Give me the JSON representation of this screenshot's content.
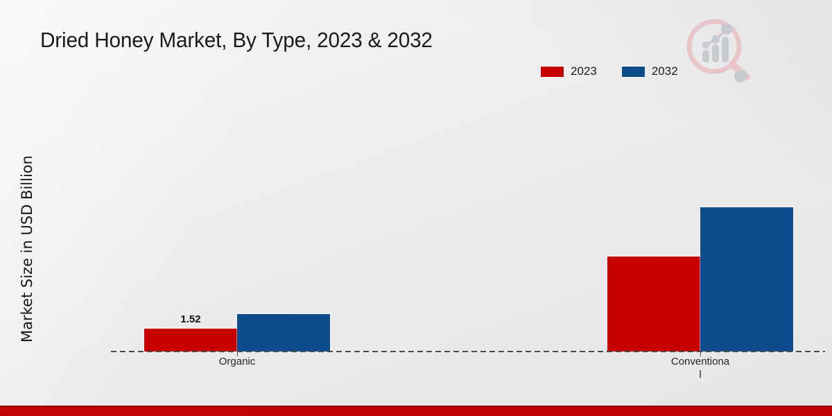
{
  "title": "Dried Honey Market, By Type, 2023 & 2032",
  "ylabel": "Market Size in USD Billion",
  "legend": [
    {
      "label": "2023",
      "color": "#c60000"
    },
    {
      "label": "2032",
      "color": "#0d4d8c"
    }
  ],
  "footer": {
    "accent_color": "#c10404"
  },
  "logo": {
    "name": "market-research-magnifier-watermark",
    "ring_color": "#e9c4c8",
    "bar_color": "#c6c9d0"
  },
  "chart_data": {
    "type": "bar",
    "title": "Dried Honey Market, By Type, 2023 & 2032",
    "ylabel": "Market Size in USD Billion",
    "xlabel": "",
    "categories": [
      "Organic",
      "Conventional"
    ],
    "category_display_lines": [
      [
        "Organic"
      ],
      [
        "Conventiona",
        "l"
      ]
    ],
    "series": [
      {
        "name": "2023",
        "color": "#c60000",
        "values": [
          1.52,
          6.3
        ]
      },
      {
        "name": "2032",
        "color": "#0d4d8c",
        "values": [
          2.5,
          9.6
        ]
      }
    ],
    "bar_value_labels": [
      {
        "series_index": 0,
        "category_index": 0,
        "text": "1.52"
      }
    ],
    "ylim": [
      0,
      16
    ],
    "grid": false,
    "legend_position": "top-right",
    "baseline_style": "dashed"
  }
}
